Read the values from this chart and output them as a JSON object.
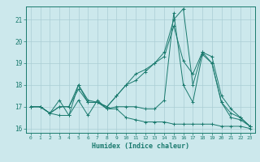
{
  "xlabel": "Humidex (Indice chaleur)",
  "ylabel": "",
  "background_color": "#cce8ec",
  "line_color": "#1a7a6e",
  "grid_color": "#aacdd4",
  "xlim": [
    -0.5,
    23.5
  ],
  "ylim": [
    15.8,
    21.6
  ],
  "yticks": [
    16,
    17,
    18,
    19,
    20,
    21
  ],
  "xticks": [
    0,
    1,
    2,
    3,
    4,
    5,
    6,
    7,
    8,
    9,
    10,
    11,
    12,
    13,
    14,
    15,
    16,
    17,
    18,
    19,
    20,
    21,
    22,
    23
  ],
  "series": [
    [
      17.0,
      17.0,
      16.7,
      16.6,
      16.6,
      17.3,
      16.6,
      17.3,
      16.9,
      16.9,
      16.5,
      16.4,
      16.3,
      16.3,
      16.3,
      16.2,
      16.2,
      16.2,
      16.2,
      16.2,
      16.1,
      16.1,
      16.1,
      16.0
    ],
    [
      17.0,
      17.0,
      16.7,
      17.3,
      16.6,
      18.0,
      17.3,
      17.2,
      16.9,
      17.0,
      17.0,
      17.0,
      16.9,
      16.9,
      17.3,
      21.3,
      18.0,
      17.2,
      19.4,
      19.0,
      17.2,
      16.5,
      16.4,
      16.1
    ],
    [
      17.0,
      17.0,
      16.7,
      17.0,
      17.0,
      18.0,
      17.2,
      17.2,
      17.0,
      17.5,
      18.0,
      18.5,
      18.7,
      19.0,
      19.3,
      20.7,
      19.1,
      18.5,
      19.5,
      19.3,
      17.5,
      16.9,
      16.5,
      16.1
    ],
    [
      17.0,
      17.0,
      16.7,
      17.0,
      17.0,
      17.8,
      17.2,
      17.2,
      17.0,
      17.5,
      18.0,
      18.2,
      18.6,
      19.0,
      19.5,
      21.0,
      21.5,
      18.0,
      19.5,
      19.0,
      17.2,
      16.7,
      16.5,
      16.1
    ]
  ]
}
